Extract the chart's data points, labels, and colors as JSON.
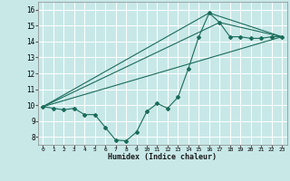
{
  "xlabel": "Humidex (Indice chaleur)",
  "line_color": "#1a6b5a",
  "bg_color": "#c8e8e8",
  "grid_color": "#ffffff",
  "xlim": [
    -0.5,
    23.5
  ],
  "ylim": [
    7.5,
    16.5
  ],
  "xticks": [
    0,
    1,
    2,
    3,
    4,
    5,
    6,
    7,
    8,
    9,
    10,
    11,
    12,
    13,
    14,
    15,
    16,
    17,
    18,
    19,
    20,
    21,
    22,
    23
  ],
  "yticks": [
    8,
    9,
    10,
    11,
    12,
    13,
    14,
    15,
    16
  ],
  "line1_x": [
    0,
    1,
    2,
    3,
    4,
    5,
    6,
    7,
    8,
    9,
    10,
    11,
    12,
    13,
    14,
    15,
    16,
    17,
    18,
    19,
    20,
    21,
    22,
    23
  ],
  "line1_y": [
    9.9,
    9.8,
    9.7,
    9.8,
    9.4,
    9.4,
    8.6,
    7.8,
    7.75,
    8.3,
    9.6,
    10.1,
    9.8,
    10.5,
    12.3,
    14.3,
    15.8,
    15.2,
    14.3,
    14.3,
    14.2,
    14.2,
    14.3,
    14.3
  ],
  "line2_x": [
    0,
    23
  ],
  "line2_y": [
    9.9,
    14.3
  ],
  "line3_x": [
    0,
    16,
    23
  ],
  "line3_y": [
    9.9,
    15.8,
    14.3
  ],
  "line4_x": [
    0,
    17,
    23
  ],
  "line4_y": [
    9.9,
    15.2,
    14.3
  ]
}
